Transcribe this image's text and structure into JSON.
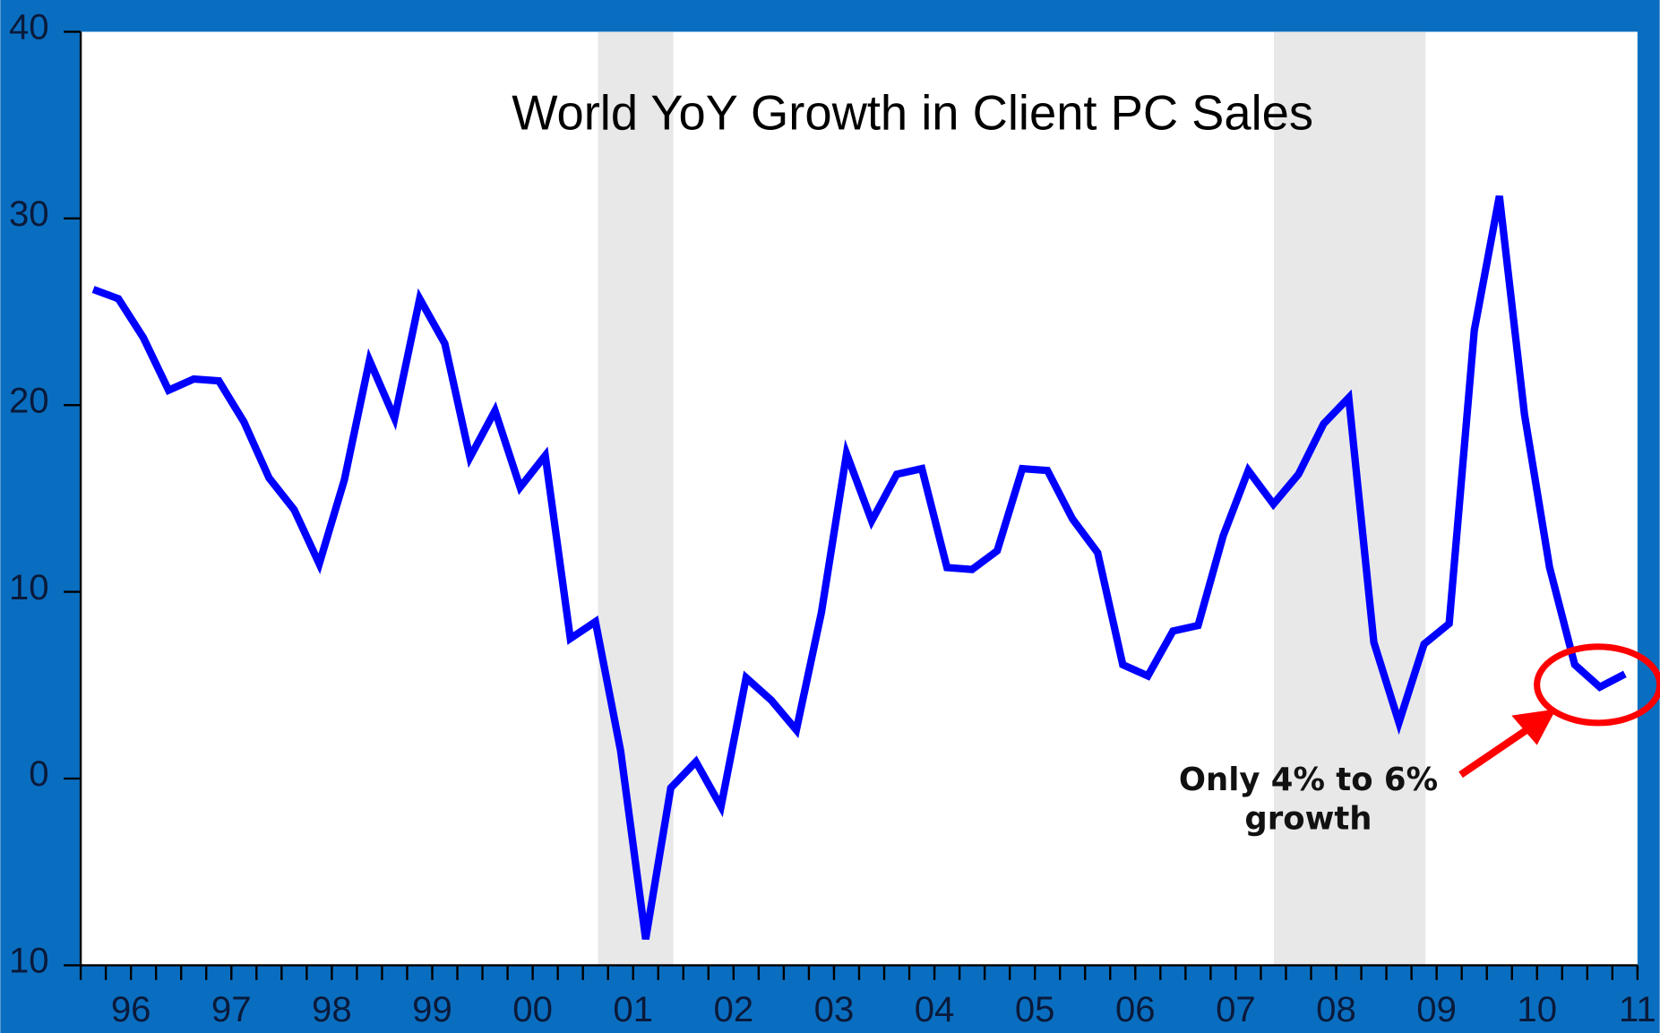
{
  "chart_data": {
    "type": "line",
    "title": "World YoY Growth in Client PC Sales",
    "annotation": [
      "Only 4% to 6%",
      "growth"
    ],
    "x": [
      1996.125,
      1996.375,
      1996.625,
      1996.875,
      1997.125,
      1997.375,
      1997.625,
      1997.875,
      1998.125,
      1998.375,
      1998.625,
      1998.875,
      1999.125,
      1999.375,
      1999.625,
      1999.875,
      2000.125,
      2000.375,
      2000.625,
      2000.875,
      2001.125,
      2001.375,
      2001.625,
      2001.875,
      2002.125,
      2002.375,
      2002.625,
      2002.875,
      2003.125,
      2003.375,
      2003.625,
      2003.875,
      2004.125,
      2004.375,
      2004.625,
      2004.875,
      2005.125,
      2005.375,
      2005.625,
      2005.875,
      2006.125,
      2006.375,
      2006.625,
      2006.875,
      2007.125,
      2007.375,
      2007.625,
      2007.875,
      2008.125,
      2008.375,
      2008.625,
      2008.875,
      2009.125,
      2009.375,
      2009.625,
      2009.875,
      2010.125,
      2010.375,
      2010.625,
      2010.875,
      2011.125,
      2011.375
    ],
    "series": [
      {
        "name": "World YoY Growth",
        "color": "#0000ff",
        "values": [
          26.2,
          25.7,
          23.6,
          20.8,
          21.4,
          21.3,
          19.1,
          16.1,
          14.4,
          11.5,
          16.0,
          22.4,
          19.3,
          25.7,
          23.3,
          17.2,
          19.7,
          15.6,
          17.3,
          7.5,
          8.4,
          1.5,
          -8.6,
          -0.5,
          0.9,
          -1.5,
          5.4,
          4.2,
          2.6,
          8.9,
          17.4,
          13.8,
          16.3,
          16.6,
          11.3,
          11.2,
          12.2,
          16.6,
          16.5,
          13.9,
          12.1,
          6.1,
          5.5,
          7.9,
          8.2,
          13.0,
          16.5,
          14.7,
          16.3,
          19.0,
          20.4,
          7.3,
          3.0,
          7.2,
          8.3,
          24.0,
          31.2,
          19.5,
          11.3,
          6.1,
          4.9,
          5.6
        ]
      }
    ],
    "recessions": [
      [
        2001.15,
        2001.9
      ],
      [
        2007.88,
        2009.39
      ]
    ],
    "xlim": [
      1996,
      2011.5
    ],
    "xticks": [
      {
        "value": 1996.5,
        "label": "96"
      },
      {
        "value": 1997.5,
        "label": "97"
      },
      {
        "value": 1998.5,
        "label": "98"
      },
      {
        "value": 1999.5,
        "label": "99"
      },
      {
        "value": 2000.5,
        "label": "00"
      },
      {
        "value": 2001.5,
        "label": "01"
      },
      {
        "value": 2002.5,
        "label": "02"
      },
      {
        "value": 2003.5,
        "label": "03"
      },
      {
        "value": 2004.5,
        "label": "04"
      },
      {
        "value": 2005.5,
        "label": "05"
      },
      {
        "value": 2006.5,
        "label": "06"
      },
      {
        "value": 2007.5,
        "label": "07"
      },
      {
        "value": 2008.5,
        "label": "08"
      },
      {
        "value": 2009.5,
        "label": "09"
      },
      {
        "value": 2010.5,
        "label": "10"
      },
      {
        "value": 2011.5,
        "label": "11"
      }
    ],
    "ylim": [
      -10,
      40
    ],
    "yticks": [
      40,
      30,
      20,
      10,
      0,
      {
        "value": -10,
        "label": "10"
      }
    ],
    "grid": false
  }
}
